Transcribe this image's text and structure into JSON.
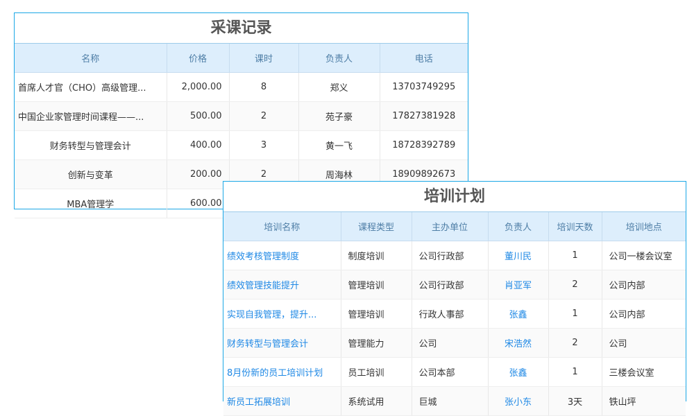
{
  "purchase": {
    "title": "采课记录",
    "columns": [
      "名称",
      "价格",
      "课时",
      "负责人",
      "电话"
    ],
    "rows": [
      [
        "首席人才官（CHO）高级管理...",
        "2,000.00",
        "8",
        "郑义",
        "13703749295"
      ],
      [
        "中国企业家管理时间课程——...",
        "500.00",
        "2",
        "苑子豪",
        "17827381928"
      ],
      [
        "财务转型与管理会计",
        "400.00",
        "3",
        "黄一飞",
        "18728392789"
      ],
      [
        "创新与变革",
        "200.00",
        "2",
        "周海林",
        "18909892673"
      ],
      [
        "MBA管理学",
        "600.00",
        "",
        "",
        ""
      ]
    ]
  },
  "plan": {
    "title": "培训计划",
    "columns": [
      "培训名称",
      "课程类型",
      "主办单位",
      "负责人",
      "培训天数",
      "培训地点"
    ],
    "rows": [
      [
        "绩效考核管理制度",
        "制度培训",
        "公司行政部",
        "董川民",
        "1",
        "公司一楼会议室"
      ],
      [
        "绩效管理技能提升",
        "管理培训",
        "公司行政部",
        "肖亚军",
        "2",
        "公司内部"
      ],
      [
        "实现自我管理，提升...",
        "管理培训",
        "行政人事部",
        "张鑫",
        "1",
        "公司内部"
      ],
      [
        "财务转型与管理会计",
        "管理能力",
        "公司",
        "宋浩然",
        "2",
        "公司"
      ],
      [
        "8月份新的员工培训计划",
        "员工培训",
        "公司本部",
        "张鑫",
        "1",
        "三楼会议室"
      ],
      [
        "新员工拓展培训",
        "系统试用",
        "巨城",
        "张小东",
        "3天",
        "铁山坪"
      ]
    ]
  },
  "colors": {
    "border": "#1aa7e6",
    "header_bg": "#ddeefc",
    "header_text": "#4e7ea6",
    "link": "#1e88e5"
  }
}
